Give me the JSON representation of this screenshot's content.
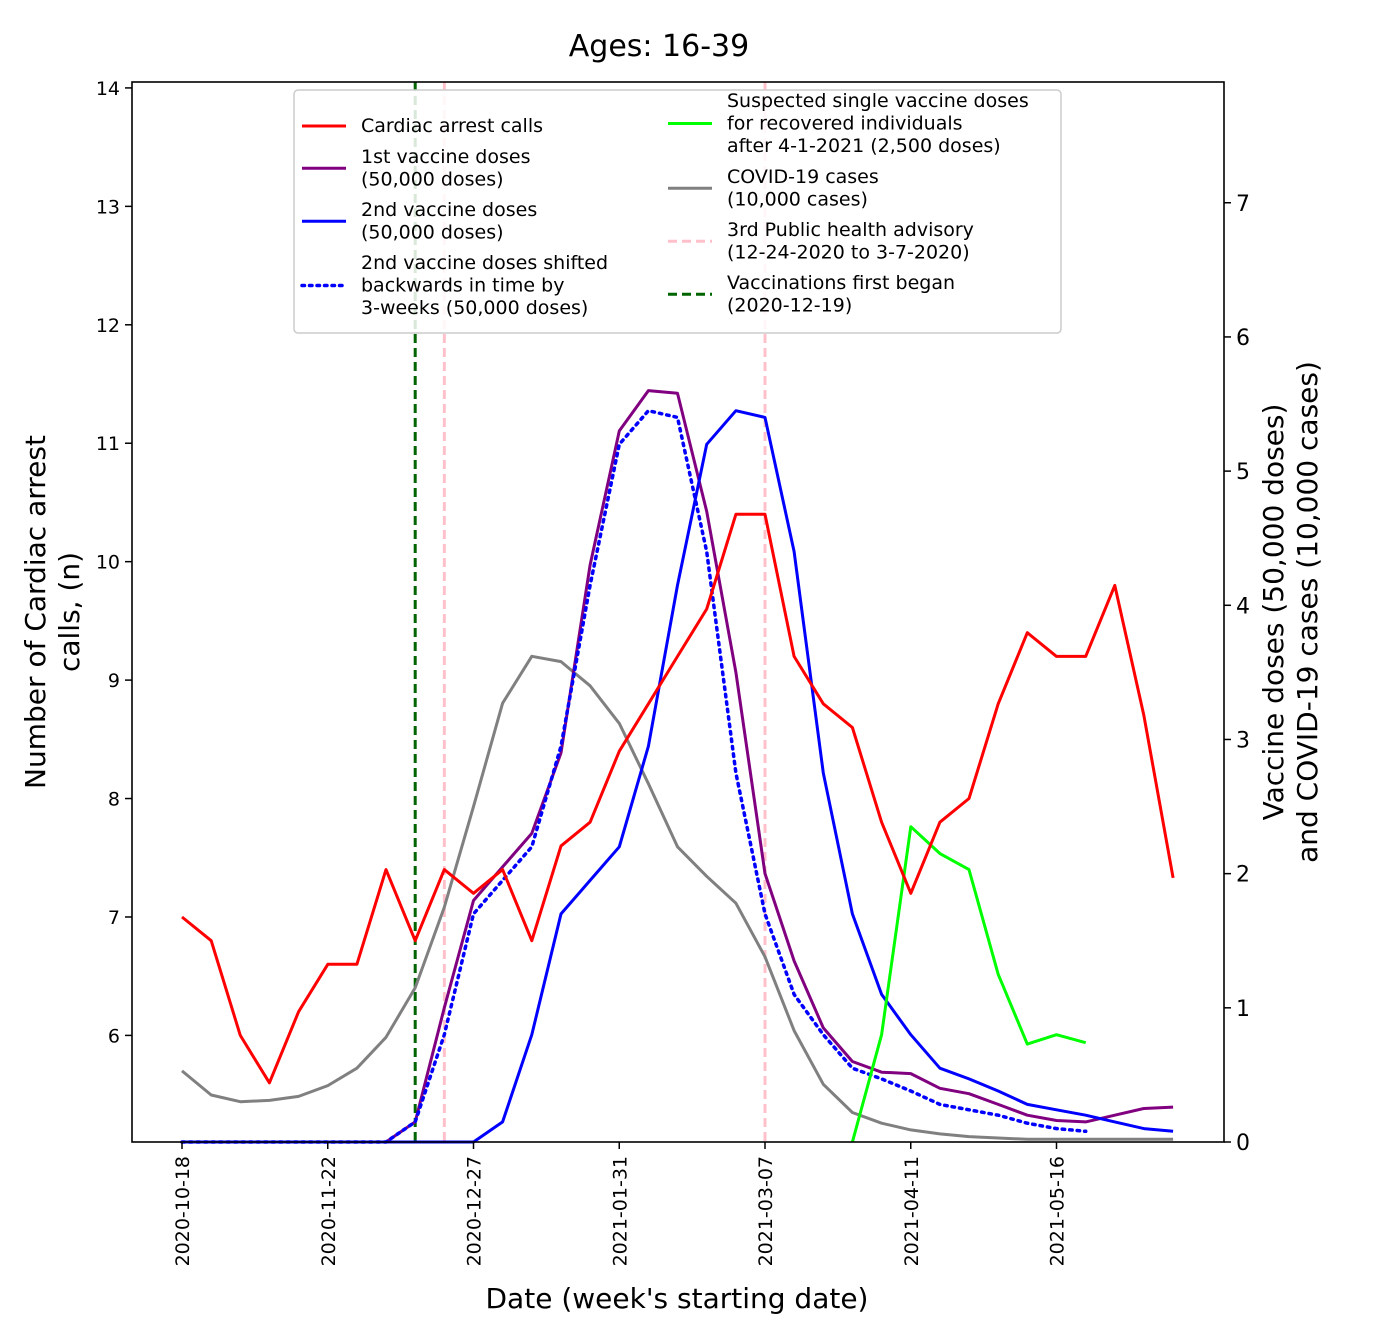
{
  "chart_data": {
    "type": "line",
    "title": "Ages: 16-39",
    "xlabel": "Date (week's starting date)",
    "ylabel_left": [
      "Number of Cardiac arrest",
      "calls, (n)"
    ],
    "ylabel_right": [
      "Vaccine doses (50,000 doses)",
      "and COVID-19 cases (10,000 cases)"
    ],
    "x_start": "2020-10-18",
    "x_step_days": 7,
    "x_tick_labels": [
      "2020-10-18",
      "2020-11-22",
      "2020-12-27",
      "2021-01-31",
      "2021-03-07",
      "2021-04-11",
      "2021-05-16"
    ],
    "ylim_left": [
      5.1,
      14.05
    ],
    "ylim_right": [
      0,
      7.9
    ],
    "yticks_left": [
      6,
      7,
      8,
      9,
      10,
      11,
      12,
      13,
      14
    ],
    "yticks_right": [
      0,
      1,
      2,
      3,
      4,
      5,
      6,
      7
    ],
    "grid": false,
    "legend_position": "top-center",
    "series": [
      {
        "name": "Cardiac arrest calls",
        "axis": "left",
        "color": "#ff0000",
        "style": "solid",
        "values": [
          7.0,
          6.8,
          6.0,
          5.6,
          6.2,
          6.6,
          6.6,
          7.4,
          6.8,
          7.4,
          7.2,
          7.4,
          6.8,
          7.6,
          7.8,
          8.4,
          8.8,
          9.2,
          9.6,
          10.4,
          10.4,
          9.2,
          8.8,
          8.6,
          7.8,
          7.2,
          7.8,
          8.0,
          8.8,
          9.4,
          9.2,
          9.2,
          9.8,
          8.7,
          7.33
        ]
      },
      {
        "name": "1st vaccine doses\n(50,000 doses)",
        "axis": "right",
        "color": "#800080",
        "style": "solid",
        "values": [
          0,
          0,
          0,
          0,
          0,
          0,
          0,
          0,
          0.15,
          1.0,
          1.8,
          2.05,
          2.3,
          2.9,
          4.3,
          5.3,
          5.6,
          5.58,
          4.7,
          3.5,
          2.0,
          1.35,
          0.85,
          0.6,
          0.52,
          0.51,
          0.4,
          0.36,
          0.28,
          0.2,
          0.16,
          0.15,
          0.2,
          0.25,
          0.26
        ]
      },
      {
        "name": "2nd vaccine doses\n(50,000 doses)",
        "axis": "right",
        "color": "#0000ff",
        "style": "solid",
        "values": [
          0,
          0,
          0,
          0,
          0,
          0,
          0,
          0,
          0,
          0,
          0,
          0.15,
          0.8,
          1.7,
          1.95,
          2.2,
          2.95,
          4.15,
          5.2,
          5.45,
          5.4,
          4.4,
          2.75,
          1.7,
          1.1,
          0.8,
          0.55,
          0.47,
          0.38,
          0.28,
          0.24,
          0.2,
          0.15,
          0.1,
          0.08
        ]
      },
      {
        "name": "2nd vaccine doses shifted\nbackwards in time by\n3-weeks (50,000 doses)",
        "axis": "right",
        "color": "#0000ff",
        "style": "dotted",
        "values": [
          0,
          0,
          0,
          0,
          0,
          0,
          0,
          0,
          0.15,
          0.8,
          1.7,
          1.95,
          2.2,
          2.95,
          4.15,
          5.2,
          5.45,
          5.4,
          4.4,
          2.75,
          1.7,
          1.1,
          0.8,
          0.55,
          0.47,
          0.38,
          0.28,
          0.24,
          0.2,
          0.14,
          0.1,
          0.08
        ]
      },
      {
        "name": "Suspected single vaccine doses\nfor recovered individuals\nafter 4-1-2021 (2,500 doses)",
        "axis": "right",
        "color": "#00ff00",
        "style": "solid",
        "start_index": 23,
        "values": [
          0,
          0.8,
          2.35,
          2.15,
          2.03,
          1.25,
          0.73,
          0.8,
          0.74
        ]
      },
      {
        "name": "COVID-19 cases\n(10,000 cases)",
        "axis": "right",
        "color": "#808080",
        "style": "solid",
        "values": [
          0.53,
          0.35,
          0.3,
          0.31,
          0.34,
          0.42,
          0.55,
          0.78,
          1.15,
          1.75,
          2.5,
          3.27,
          3.62,
          3.58,
          3.4,
          3.12,
          2.67,
          2.2,
          1.98,
          1.78,
          1.38,
          0.83,
          0.43,
          0.22,
          0.14,
          0.09,
          0.06,
          0.04,
          0.03,
          0.02,
          0.02,
          0.02,
          0.02,
          0.02,
          0.02
        ]
      }
    ],
    "vertical_lines": [
      {
        "name": "3rd Public health advisory\n(12-24-2020 to 3-7-2020)",
        "color": "#ffc0cb",
        "style": "dashed",
        "x_index": [
          9,
          20
        ]
      },
      {
        "name": "Vaccinations first began\n(2020-12-19)",
        "color": "#006400",
        "style": "dashed",
        "x_index": [
          8
        ]
      }
    ]
  }
}
